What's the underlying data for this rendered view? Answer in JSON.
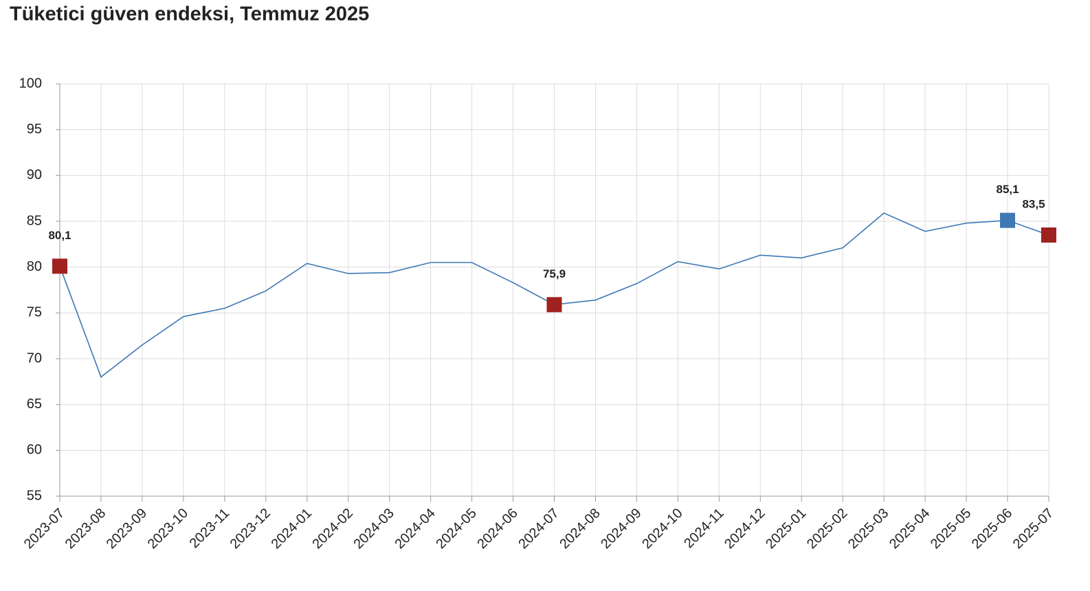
{
  "chart_data": {
    "type": "line",
    "title": "Tüketici güven endeksi, Temmuz 2025",
    "categories": [
      "2023-07",
      "2023-08",
      "2023-09",
      "2023-10",
      "2023-11",
      "2023-12",
      "2024-01",
      "2024-02",
      "2024-03",
      "2024-04",
      "2024-05",
      "2024-06",
      "2024-07",
      "2024-08",
      "2024-09",
      "2024-10",
      "2024-11",
      "2024-12",
      "2025-01",
      "2025-02",
      "2025-03",
      "2025-04",
      "2025-05",
      "2025-06",
      "2025-07"
    ],
    "values": [
      80.1,
      68.0,
      71.5,
      74.6,
      75.5,
      77.4,
      80.4,
      79.3,
      79.4,
      80.5,
      80.5,
      78.3,
      75.9,
      76.4,
      78.2,
      80.6,
      79.8,
      81.3,
      81.0,
      82.1,
      85.9,
      83.9,
      84.8,
      85.1,
      83.5
    ],
    "value_labels": [
      "80,1",
      null,
      null,
      null,
      null,
      null,
      null,
      null,
      null,
      null,
      null,
      null,
      "75,9",
      null,
      null,
      null,
      null,
      null,
      null,
      null,
      null,
      null,
      null,
      "85,1",
      "83,5"
    ],
    "marker_colors": [
      "#a0221f",
      null,
      null,
      null,
      null,
      null,
      null,
      null,
      null,
      null,
      null,
      null,
      "#a0221f",
      null,
      null,
      null,
      null,
      null,
      null,
      null,
      null,
      null,
      null,
      "#3f78b4",
      "#a0221f"
    ],
    "color": "#3d78b6",
    "ylim": [
      55,
      100
    ],
    "yticks": [
      55,
      60,
      65,
      70,
      75,
      80,
      85,
      90,
      95,
      100
    ],
    "grid": true
  }
}
